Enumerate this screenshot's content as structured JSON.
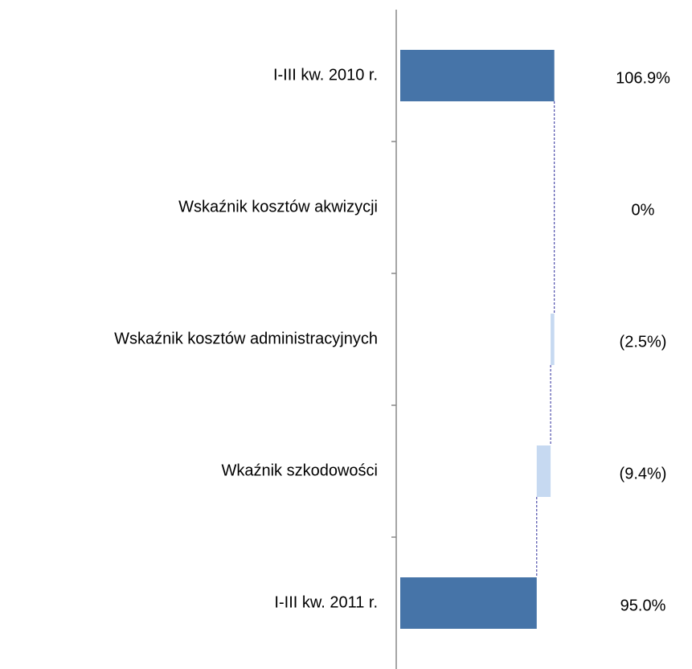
{
  "chart_data": {
    "type": "waterfall",
    "orientation": "horizontal",
    "categories": [
      "I-III kw. 2010 r.",
      "Wskaźnik kosztów  akwizycji",
      "Wskaźnik kosztów  administracyjnych",
      "Wkaźnik szkodowości",
      "I-III kw. 2011 r."
    ],
    "values": [
      106.9,
      0,
      -2.5,
      -9.4,
      95.0
    ],
    "value_labels": [
      "106.9%",
      "0%",
      "(2.5%)",
      "(9.4%)",
      "95.0%"
    ],
    "measure": [
      "absolute",
      "relative",
      "relative",
      "relative",
      "absolute"
    ],
    "colors": {
      "absolute": "#4674a8",
      "relative": "#c6d9f1",
      "connector": "#2a2a9a"
    },
    "xlim": [
      0,
      200
    ]
  }
}
